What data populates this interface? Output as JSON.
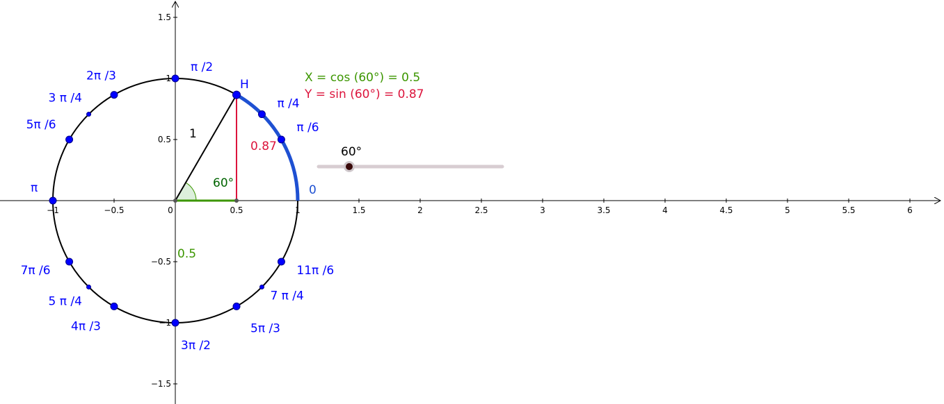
{
  "colors": {
    "unit_circle": "#000000",
    "points": "#0000ff",
    "arc": "#1e50d2",
    "cos_segment": "#3c9600",
    "sin_segment": "#dc143c",
    "angle_label": "#006400",
    "slider_track": "#d8cdd2",
    "slider_knob": "#3a0a0a",
    "axis": "#000000"
  },
  "axes": {
    "x_ticks": [
      {
        "value": -1,
        "label": "−1"
      },
      {
        "value": -0.5,
        "label": "−0.5"
      },
      {
        "value": 0,
        "label": "0"
      },
      {
        "value": 0.5,
        "label": "0.5"
      },
      {
        "value": 1,
        "label": "1"
      },
      {
        "value": 1.5,
        "label": "1.5"
      },
      {
        "value": 2,
        "label": "2"
      },
      {
        "value": 2.5,
        "label": "2.5"
      },
      {
        "value": 3,
        "label": "3"
      },
      {
        "value": 3.5,
        "label": "3.5"
      },
      {
        "value": 4,
        "label": "4"
      },
      {
        "value": 4.5,
        "label": "4.5"
      },
      {
        "value": 5,
        "label": "5"
      },
      {
        "value": 5.5,
        "label": "5.5"
      },
      {
        "value": 6,
        "label": "6"
      }
    ],
    "y_ticks": [
      {
        "value": 1.5,
        "label": "1.5"
      },
      {
        "value": 1,
        "label": "1"
      },
      {
        "value": 0.5,
        "label": "0.5"
      },
      {
        "value": -0.5,
        "label": "−0.5"
      },
      {
        "value": -1,
        "label": "−1"
      },
      {
        "value": -1.5,
        "label": "−1.5"
      }
    ]
  },
  "circle_points": [
    {
      "angle_deg": 0,
      "label": "0",
      "marker": "large"
    },
    {
      "angle_deg": 30,
      "label": "π /6",
      "marker": "large"
    },
    {
      "angle_deg": 45,
      "label": "π /4",
      "marker": "large"
    },
    {
      "angle_deg": 90,
      "label": "π /2",
      "marker": "large"
    },
    {
      "angle_deg": 120,
      "label": "2π /3",
      "marker": "large"
    },
    {
      "angle_deg": 135,
      "label": "3 π /4",
      "marker": "small"
    },
    {
      "angle_deg": 150,
      "label": "5π /6",
      "marker": "large"
    },
    {
      "angle_deg": 180,
      "label": "π",
      "marker": "large"
    },
    {
      "angle_deg": 210,
      "label": "7π /6",
      "marker": "large"
    },
    {
      "angle_deg": 225,
      "label": "5 π /4",
      "marker": "small"
    },
    {
      "angle_deg": 240,
      "label": "4π /3",
      "marker": "large"
    },
    {
      "angle_deg": 270,
      "label": "3π /2",
      "marker": "large"
    },
    {
      "angle_deg": 300,
      "label": "5π /3",
      "marker": "large"
    },
    {
      "angle_deg": 315,
      "label": "7 π /4",
      "marker": "small"
    },
    {
      "angle_deg": 330,
      "label": "11π /6",
      "marker": "large"
    }
  ],
  "selected_point": {
    "label": "H",
    "angle_deg": 60
  },
  "radius_label": "1",
  "angle_label": "60°",
  "cos_value_label": "0.5",
  "sin_value_label": "0.87",
  "info": {
    "x_line": "X = cos (60°) = 0.5",
    "y_line": "Y = sin (60°) = 0.87"
  },
  "slider": {
    "label": "60°",
    "value_deg": 60,
    "min_deg": 0,
    "max_deg": 360
  }
}
